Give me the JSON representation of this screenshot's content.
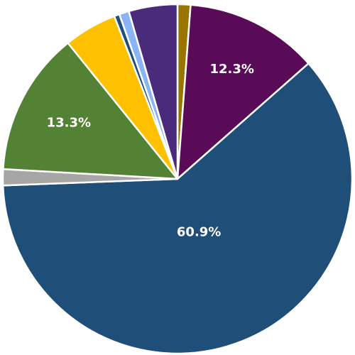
{
  "chart_data": {
    "type": "pie",
    "title": "",
    "start_angle_deg": 0,
    "direction": "clockwise",
    "slices": [
      {
        "value": 1.2,
        "color": "#9A7400",
        "label": ""
      },
      {
        "value": 12.3,
        "color": "#5A0B57",
        "label": "12.3%"
      },
      {
        "value": 60.9,
        "color": "#1F4E79",
        "label": "60.9%"
      },
      {
        "value": 1.5,
        "color": "#A6A6A6",
        "label": ""
      },
      {
        "value": 13.3,
        "color": "#548235",
        "label": "13.3%"
      },
      {
        "value": 4.9,
        "color": "#FFC000",
        "label": ""
      },
      {
        "value": 0.5,
        "color": "#1F4E79",
        "label": ""
      },
      {
        "value": 0.9,
        "color": "#8AB4F8",
        "label": ""
      },
      {
        "value": 4.5,
        "color": "#4A2A7A",
        "label": ""
      }
    ]
  }
}
